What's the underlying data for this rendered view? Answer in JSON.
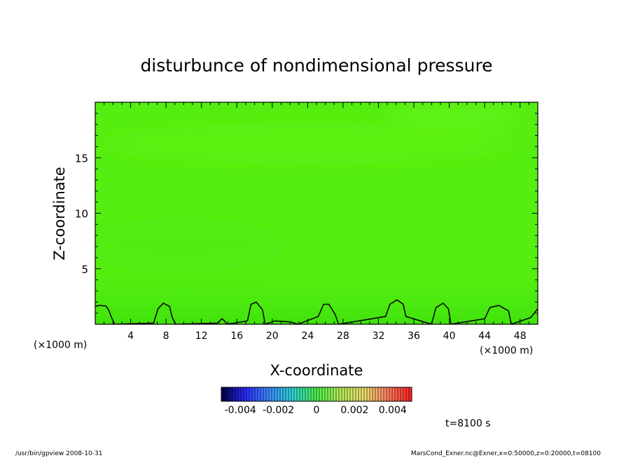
{
  "chart_data": {
    "type": "heatmap",
    "title": "disturbunce of nondimensional pressure",
    "xlabel": "X-coordinate",
    "ylabel": "Z-coordinate",
    "x_unit_left": "(×1000 m)",
    "x_unit_right": "(×1000 m)",
    "xlim": [
      0,
      50
    ],
    "ylim": [
      0,
      20
    ],
    "x_ticks": [
      4,
      8,
      12,
      16,
      20,
      24,
      28,
      32,
      36,
      40,
      44,
      48
    ],
    "y_ticks": [
      5,
      10,
      15
    ],
    "field_color": "#55ee11",
    "colorbar": {
      "range": [
        -0.005,
        0.005
      ],
      "tick_labels": [
        "-0.004",
        "-0.002",
        "0",
        "0.002",
        "0.004"
      ],
      "tick_values": [
        -0.004,
        -0.002,
        0,
        0.002,
        0.004
      ],
      "colormap": [
        "#000044",
        "#2a2aff",
        "#3c8cff",
        "#30d6d6",
        "#4cf04c",
        "#b6f05a",
        "#f0e070",
        "#ff8060",
        "#ff2020"
      ]
    },
    "contour_x": [
      0,
      0.4,
      1.2,
      1.5,
      1.9,
      2.2,
      6.6,
      7.1,
      7.7,
      8.4,
      8.7,
      9.1,
      13.8,
      14.3,
      14.6,
      14.9,
      17.2,
      17.6,
      18.2,
      18.9,
      19.2,
      20.3,
      21.2,
      22.1,
      22.9,
      25.2,
      25.8,
      26.4,
      27.1,
      27.5,
      32.8,
      33.3,
      34.1,
      34.8,
      35.1,
      38.0,
      38.5,
      39.3,
      39.9,
      40.2,
      44.0,
      44.6,
      45.6,
      46.7,
      47.0,
      49.2,
      50
    ],
    "contour_z": [
      1.6,
      1.7,
      1.65,
      1.3,
      0.5,
      0,
      0.1,
      1.4,
      1.9,
      1.6,
      0.6,
      0,
      0.1,
      0.5,
      0.3,
      0,
      0.3,
      1.8,
      2.0,
      1.3,
      0,
      0.3,
      0.25,
      0.2,
      0,
      0.7,
      1.8,
      1.8,
      0.9,
      0,
      0.7,
      1.8,
      2.2,
      1.8,
      0.7,
      0,
      1.5,
      1.9,
      1.4,
      0,
      0.5,
      1.5,
      1.7,
      1.2,
      0,
      0.6,
      1.4
    ]
  },
  "time_label": "t=8100 s",
  "footer": {
    "left": "/usr/bin/gpview   2008-10-31",
    "right": "MarsCond_Exner.nc@Exner,x=0:50000,z=0:20000,t=08100"
  }
}
